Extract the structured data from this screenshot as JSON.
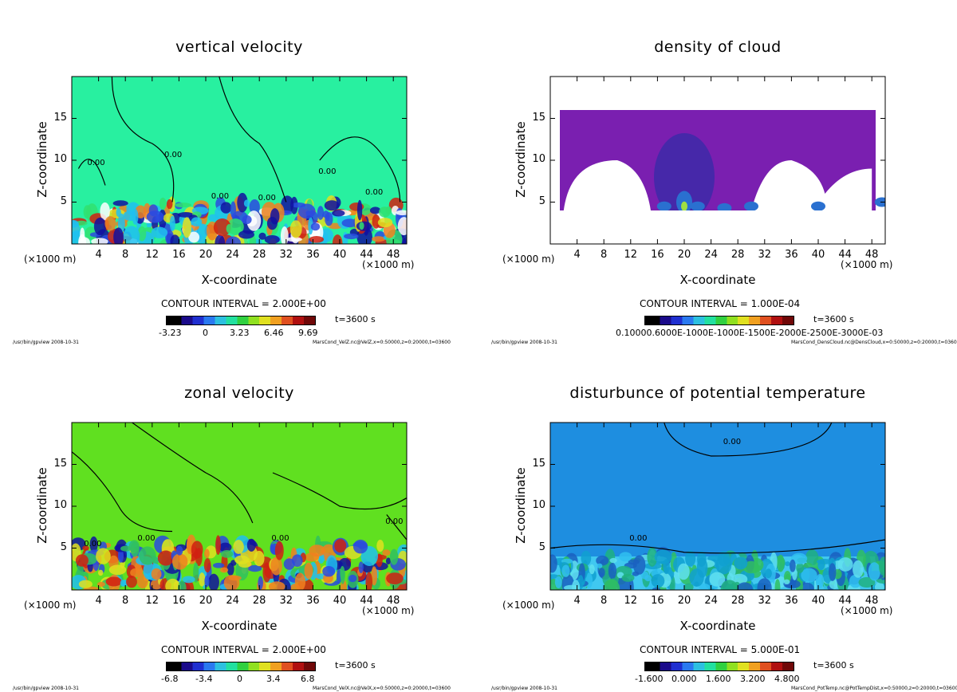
{
  "panels": [
    {
      "title": "vertical velocity",
      "ylabel": "Z-coordinate",
      "xlabel": "X-coordinate",
      "x_unit": "(×1000 m)",
      "yticks": [
        "5",
        "10",
        "15"
      ],
      "xticks": [
        "4",
        "8",
        "12",
        "16",
        "20",
        "24",
        "28",
        "32",
        "36",
        "40",
        "44",
        "48"
      ],
      "contour_interval": "CONTOUR INTERVAL = 2.000E+00",
      "colorbar_ticks": [
        "-3.23",
        "0",
        "3.23",
        "6.46",
        "9.69"
      ],
      "time": "t=3600 s",
      "footer_left": "/usr/bin/gpview  2008-10-31",
      "footer_right": "MarsCond_VelZ.nc@VelZ,x=0:50000,z=0:20000,t=03600",
      "contour_labels": [
        "0.00",
        "0.00",
        "0.00",
        "0.00",
        "0.00",
        "0.00"
      ]
    },
    {
      "title": "density of cloud",
      "ylabel": "Z-coordinate",
      "xlabel": "X-coordinate",
      "x_unit": "(×1000 m)",
      "yticks": [
        "5",
        "10",
        "15"
      ],
      "xticks": [
        "4",
        "8",
        "12",
        "16",
        "20",
        "24",
        "28",
        "32",
        "36",
        "40",
        "44",
        "48"
      ],
      "contour_interval": "CONTOUR INTERVAL = 1.000E-04",
      "colorbar_ticks": [
        "0.10000.6000E-1000E-1000E-1500E-2000E-2500E-3000E-03"
      ],
      "time": "t=3600 s",
      "footer_left": "/usr/bin/gpview  2008-10-31",
      "footer_right": "MarsCond_DensCloud.nc@DensCloud,x=0:50000,z=0:20000,t=03600",
      "contour_labels": []
    },
    {
      "title": "zonal velocity",
      "ylabel": "Z-coordinate",
      "xlabel": "X-coordinate",
      "x_unit": "(×1000 m)",
      "yticks": [
        "5",
        "10",
        "15"
      ],
      "xticks": [
        "4",
        "8",
        "12",
        "16",
        "20",
        "24",
        "28",
        "32",
        "36",
        "40",
        "44",
        "48"
      ],
      "contour_interval": "CONTOUR INTERVAL = 2.000E+00",
      "colorbar_ticks": [
        "-6.8",
        "-3.4",
        "0",
        "3.4",
        "6.8"
      ],
      "time": "t=3600 s",
      "footer_left": "/usr/bin/gpview  2008-10-31",
      "footer_right": "MarsCond_VelX.nc@VelX,x=0:50000,z=0:20000,t=03600",
      "contour_labels": [
        "0.00",
        "0.00",
        "0.00",
        "0.00"
      ]
    },
    {
      "title": "disturbunce of potential temperature",
      "ylabel": "Z-coordinate",
      "xlabel": "X-coordinate",
      "x_unit": "(×1000 m)",
      "yticks": [
        "5",
        "10",
        "15"
      ],
      "xticks": [
        "4",
        "8",
        "12",
        "16",
        "20",
        "24",
        "28",
        "32",
        "36",
        "40",
        "44",
        "48"
      ],
      "contour_interval": "CONTOUR INTERVAL = 5.000E-01",
      "colorbar_ticks": [
        "-1.600",
        "0.000",
        "1.600",
        "3.200",
        "4.800"
      ],
      "time": "t=3600 s",
      "footer_left": "/usr/bin/gpview  2008-10-31",
      "footer_right": "MarsCond_PotTemp.nc@PotTempDist,x=0:50000,z=0:20000,t=03600",
      "contour_labels": [
        "0.00",
        "0.00"
      ]
    }
  ],
  "chart_data": [
    {
      "type": "heatmap",
      "title": "vertical velocity",
      "xlabel": "X-coordinate",
      "ylabel": "Z-coordinate",
      "xlim": [
        0,
        50
      ],
      "ylim": [
        0,
        20
      ],
      "x_unit": "x1000 m",
      "contour_interval": 2.0,
      "colorbar_ticks": [
        -3.23,
        0,
        3.23,
        6.46,
        9.69
      ],
      "time_s": 3600,
      "background_color": "#28f0a0"
    },
    {
      "type": "heatmap",
      "title": "density of cloud",
      "xlabel": "X-coordinate",
      "ylabel": "Z-coordinate",
      "xlim": [
        0,
        50
      ],
      "ylim": [
        0,
        20
      ],
      "x_unit": "x1000 m",
      "contour_interval": 0.0001,
      "time_s": 3600,
      "background_color": "#7a1fb0"
    },
    {
      "type": "heatmap",
      "title": "zonal velocity",
      "xlabel": "X-coordinate",
      "ylabel": "Z-coordinate",
      "xlim": [
        0,
        50
      ],
      "ylim": [
        0,
        20
      ],
      "x_unit": "x1000 m",
      "contour_interval": 2.0,
      "colorbar_ticks": [
        -6.8,
        -3.4,
        0,
        3.4,
        6.8
      ],
      "time_s": 3600,
      "background_color": "#60e020"
    },
    {
      "type": "heatmap",
      "title": "disturbunce of potential temperature",
      "xlabel": "X-coordinate",
      "ylabel": "Z-coordinate",
      "xlim": [
        0,
        50
      ],
      "ylim": [
        0,
        20
      ],
      "x_unit": "x1000 m",
      "contour_interval": 0.5,
      "colorbar_ticks": [
        -1.6,
        0.0,
        1.6,
        3.2,
        4.8
      ],
      "time_s": 3600,
      "background_color": "#1e8ee0"
    }
  ]
}
